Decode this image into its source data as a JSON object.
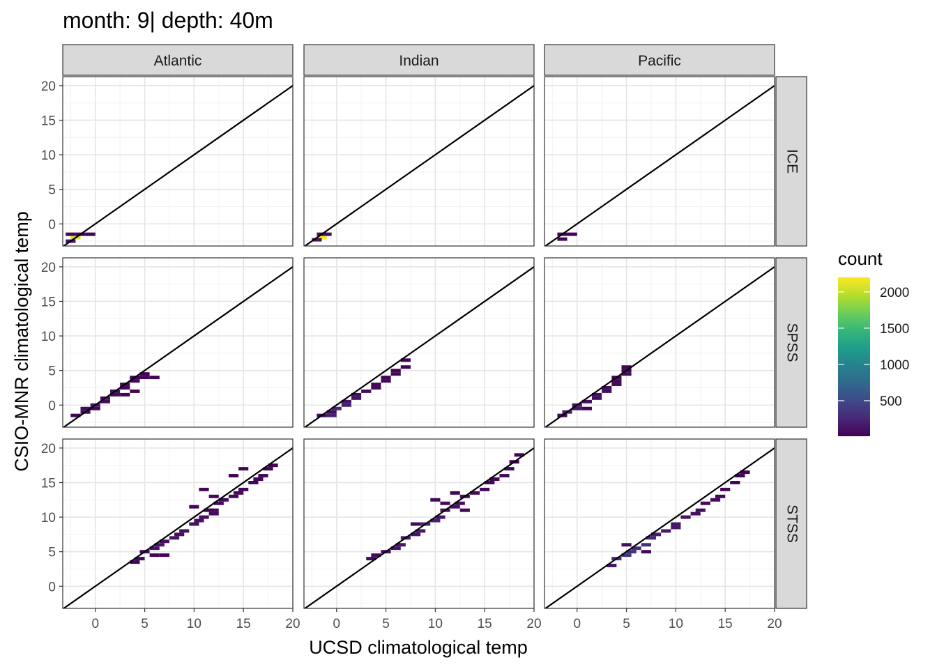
{
  "chart_data": {
    "type": "heatmap",
    "title": "month: 9| depth: 40m",
    "xlabel": "UCSD climatological temp",
    "ylabel": "CSIO-MNR climatological temp",
    "xlim": [
      -3.3,
      20
    ],
    "ylim": [
      -3.2,
      21.3
    ],
    "x_ticks": [
      0,
      5,
      10,
      15,
      20
    ],
    "y_ticks": [
      0,
      5,
      10,
      15,
      20
    ],
    "x_tick_labels": [
      "0",
      "5",
      "10",
      "15",
      "20"
    ],
    "y_tick_labels": [
      "0",
      "5",
      "10",
      "15",
      "20"
    ],
    "grid": true,
    "reference_line": "y = x",
    "bin_width": 1,
    "facet_cols": [
      "Atlantic",
      "Indian",
      "Pacific"
    ],
    "facet_rows": [
      "ICE",
      "SPSS",
      "STSS"
    ],
    "legend": {
      "title": "count",
      "position": "right",
      "range": [
        10,
        2200
      ],
      "ticks": [
        500,
        1000,
        1500,
        2000
      ],
      "tick_labels": [
        "500",
        "1000",
        "1500",
        "2000"
      ],
      "colors": [
        "#440154",
        "#482878",
        "#3e4989",
        "#31688e",
        "#26828e",
        "#1f9e89",
        "#35b779",
        "#6ece58",
        "#b5de2b",
        "#fde725"
      ]
    },
    "panels": [
      {
        "col": "Atlantic",
        "row": "ICE",
        "cells": [
          [
            -2.5,
            -1.5,
            40
          ],
          [
            -1.5,
            -1.5,
            60
          ],
          [
            -0.5,
            -1.5,
            40
          ],
          [
            -2,
            -2,
            2100
          ],
          [
            -2.5,
            -2.5,
            150
          ]
        ]
      },
      {
        "col": "Indian",
        "row": "ICE",
        "cells": [
          [
            -1.5,
            -1.5,
            60
          ],
          [
            -1,
            -1.5,
            80
          ],
          [
            -1.5,
            -2,
            2200
          ],
          [
            -2,
            -2.3,
            120
          ]
        ]
      },
      {
        "col": "Pacific",
        "row": "ICE",
        "cells": [
          [
            -1.5,
            -1.5,
            50
          ],
          [
            -0.5,
            -1.5,
            30
          ],
          [
            -1.5,
            -2.2,
            60
          ]
        ]
      },
      {
        "col": "Atlantic",
        "row": "SPSS",
        "cells": [
          [
            -2,
            -1.5,
            30
          ],
          [
            -1,
            -1,
            50
          ],
          [
            -1,
            -0.5,
            80
          ],
          [
            0,
            -0.5,
            60
          ],
          [
            0,
            0,
            120
          ],
          [
            1,
            0.5,
            100
          ],
          [
            1,
            1,
            90
          ],
          [
            2,
            1.5,
            80
          ],
          [
            2,
            2,
            70
          ],
          [
            3,
            2.5,
            60
          ],
          [
            3,
            3,
            60
          ],
          [
            4,
            3.5,
            50
          ],
          [
            4,
            4,
            40
          ],
          [
            5,
            4,
            30
          ],
          [
            5,
            4.5,
            40
          ],
          [
            6,
            4,
            20
          ],
          [
            4,
            2,
            20
          ],
          [
            3,
            1.5,
            20
          ]
        ]
      },
      {
        "col": "Indian",
        "row": "SPSS",
        "cells": [
          [
            -1.5,
            -1.5,
            40
          ],
          [
            -0.5,
            -1.5,
            200
          ],
          [
            -0.5,
            -1,
            80
          ],
          [
            0,
            -0.5,
            250
          ],
          [
            1,
            0,
            200
          ],
          [
            1,
            0.5,
            150
          ],
          [
            2,
            1,
            120
          ],
          [
            2,
            1.5,
            100
          ],
          [
            3,
            2,
            80
          ],
          [
            4,
            2.5,
            60
          ],
          [
            4,
            3,
            60
          ],
          [
            5,
            3.5,
            50
          ],
          [
            5,
            4,
            40
          ],
          [
            6,
            4.5,
            40
          ],
          [
            6,
            5,
            30
          ],
          [
            7,
            5.5,
            30
          ],
          [
            7,
            6.5,
            20
          ]
        ]
      },
      {
        "col": "Pacific",
        "row": "SPSS",
        "cells": [
          [
            -1.5,
            -1.5,
            40
          ],
          [
            -1,
            -1,
            200
          ],
          [
            0,
            -0.5,
            150
          ],
          [
            0,
            0,
            120
          ],
          [
            1,
            0.5,
            100
          ],
          [
            2,
            1,
            100
          ],
          [
            2,
            1.5,
            90
          ],
          [
            3,
            2,
            80
          ],
          [
            3,
            2.5,
            80
          ],
          [
            4,
            3,
            70
          ],
          [
            4,
            3.5,
            60
          ],
          [
            4,
            4,
            50
          ],
          [
            5,
            4.5,
            50
          ],
          [
            5,
            5,
            40
          ],
          [
            5,
            5.5,
            30
          ],
          [
            1,
            -0.5,
            30
          ]
        ]
      },
      {
        "col": "Atlantic",
        "row": "STSS",
        "cells": [
          [
            4,
            3.5,
            30
          ],
          [
            4.5,
            4,
            60
          ],
          [
            5,
            5,
            100
          ],
          [
            6,
            5.5,
            150
          ],
          [
            6.5,
            6,
            140
          ],
          [
            7,
            6.5,
            120
          ],
          [
            8,
            7,
            140
          ],
          [
            8.5,
            7.5,
            110
          ],
          [
            9,
            8,
            120
          ],
          [
            10,
            9,
            100
          ],
          [
            10.5,
            9.5,
            110
          ],
          [
            11,
            10,
            90
          ],
          [
            12,
            10.5,
            80
          ],
          [
            12,
            11,
            80
          ],
          [
            12.5,
            12,
            70
          ],
          [
            13,
            12.5,
            70
          ],
          [
            14,
            13,
            60
          ],
          [
            14.5,
            13.5,
            60
          ],
          [
            15,
            14,
            50
          ],
          [
            16,
            15,
            40
          ],
          [
            16.5,
            15.5,
            40
          ],
          [
            17,
            16,
            30
          ],
          [
            17.5,
            17,
            30
          ],
          [
            18,
            17.5,
            20
          ],
          [
            11,
            14,
            30
          ],
          [
            12,
            13,
            40
          ],
          [
            14,
            16,
            20
          ],
          [
            15,
            17,
            20
          ],
          [
            6,
            4.5,
            40
          ],
          [
            7,
            4.5,
            30
          ],
          [
            10,
            11.5,
            40
          ],
          [
            11.5,
            11,
            50
          ]
        ]
      },
      {
        "col": "Indian",
        "row": "STSS",
        "cells": [
          [
            3.5,
            4,
            60
          ],
          [
            4,
            4.5,
            90
          ],
          [
            5,
            5,
            120
          ],
          [
            6,
            5.5,
            150
          ],
          [
            6.5,
            6,
            140
          ],
          [
            7,
            7,
            170
          ],
          [
            8,
            7.5,
            150
          ],
          [
            8.5,
            8,
            160
          ],
          [
            9,
            9,
            250
          ],
          [
            10,
            9.5,
            200
          ],
          [
            10.5,
            10,
            150
          ],
          [
            11,
            11,
            130
          ],
          [
            12,
            11.5,
            110
          ],
          [
            12.5,
            12,
            100
          ],
          [
            13,
            13,
            90
          ],
          [
            14,
            13.5,
            80
          ],
          [
            15,
            14,
            70
          ],
          [
            15.5,
            15,
            60
          ],
          [
            16,
            15.5,
            60
          ],
          [
            17,
            16,
            50
          ],
          [
            17.5,
            17,
            40
          ],
          [
            18,
            18,
            30
          ],
          [
            18.5,
            19,
            20
          ],
          [
            10,
            12.5,
            60
          ],
          [
            11,
            12,
            80
          ],
          [
            12,
            13.5,
            40
          ],
          [
            13,
            11,
            50
          ],
          [
            8,
            9,
            60
          ]
        ]
      },
      {
        "col": "Pacific",
        "row": "STSS",
        "cells": [
          [
            3.5,
            3,
            150
          ],
          [
            4,
            4,
            300
          ],
          [
            5,
            4.5,
            350
          ],
          [
            5.5,
            5,
            320
          ],
          [
            6,
            5.5,
            300
          ],
          [
            7,
            6,
            300
          ],
          [
            7.5,
            7,
            250
          ],
          [
            8,
            7.5,
            200
          ],
          [
            9,
            8,
            180
          ],
          [
            10,
            8.5,
            160
          ],
          [
            10,
            9,
            140
          ],
          [
            11,
            10,
            120
          ],
          [
            12,
            10.5,
            100
          ],
          [
            12.5,
            11,
            90
          ],
          [
            13,
            12,
            80
          ],
          [
            14,
            12.5,
            70
          ],
          [
            14.5,
            13,
            60
          ],
          [
            15,
            14,
            50
          ],
          [
            16,
            15,
            40
          ],
          [
            16.5,
            16,
            30
          ],
          [
            17,
            16.5,
            20
          ],
          [
            5,
            6,
            80
          ],
          [
            7,
            5,
            60
          ]
        ]
      }
    ]
  }
}
